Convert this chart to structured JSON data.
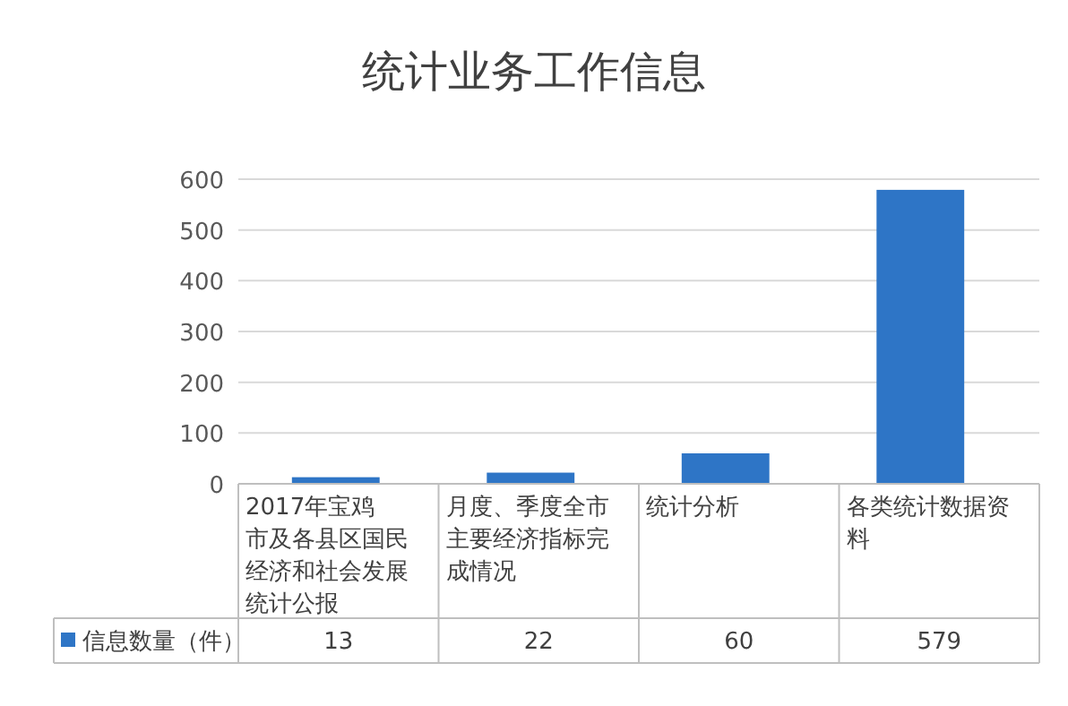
{
  "chart_data": {
    "type": "bar",
    "title": "统计业务工作信息",
    "categories": [
      "2017年宝鸡市及各县区国民经济和社会发展统计公报",
      "月度、季度全市主要经济指标完成情况",
      "统计分析",
      "各类统计数据资料"
    ],
    "series": [
      {
        "name": "信息数量（件）",
        "color": "#2e75c6",
        "values": [
          13,
          22,
          60,
          579
        ]
      }
    ],
    "ylim": [
      0,
      600
    ],
    "yticks": [
      0,
      100,
      200,
      300,
      400,
      500,
      600
    ],
    "grid": "y",
    "data_labels": true,
    "legend": "bottom"
  }
}
